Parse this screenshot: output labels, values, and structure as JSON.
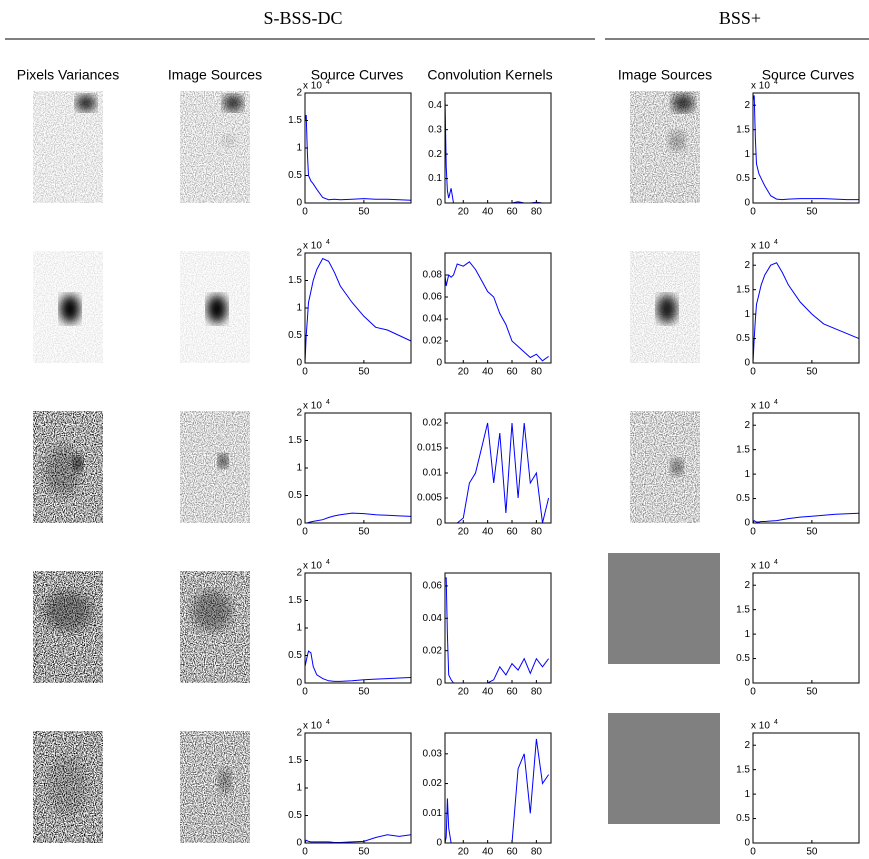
{
  "groups": [
    "S-BSS-DC",
    "BSS+"
  ],
  "columns": [
    "Pixels Variances",
    "Image Sources",
    "Source Curves",
    "Convolution Kernels",
    "Image Sources",
    "Source Curves"
  ],
  "chart_data": [
    {
      "type": "line",
      "color": "#0000ff",
      "scale_label": "x 10",
      "scale_exponent": "4",
      "x": [
        0,
        1,
        2,
        3,
        5,
        7,
        10,
        15,
        20,
        25,
        30,
        40,
        50,
        60,
        70,
        80,
        90
      ],
      "values": [
        15000,
        16000,
        9000,
        5000,
        4000,
        3500,
        2500,
        1000,
        600,
        700,
        600,
        700,
        800,
        700,
        700,
        600,
        500
      ],
      "xlim": [
        0,
        90
      ],
      "ylim": [
        0,
        20000
      ],
      "xticks": [
        0,
        50
      ],
      "yticks": [
        0,
        {
          "value": 5000,
          "label": "0.5"
        },
        {
          "value": 10000,
          "label": "1"
        },
        {
          "value": 15000,
          "label": "1.5"
        },
        {
          "value": 20000,
          "label": "2"
        }
      ]
    },
    {
      "type": "line",
      "color": "#0000ff",
      "scale_label": "x 10",
      "scale_exponent": "4",
      "x": [
        0,
        1,
        2,
        3,
        5,
        7,
        10,
        15,
        20,
        25,
        30,
        40,
        50,
        60,
        70,
        80,
        90
      ],
      "values": [
        0,
        5000,
        8000,
        11000,
        13000,
        15000,
        17000,
        19000,
        18500,
        16500,
        14000,
        11000,
        8500,
        6500,
        6000,
        5000,
        4000
      ],
      "xlim": [
        0,
        90
      ],
      "ylim": [
        0,
        20000
      ],
      "xticks": [
        0,
        50
      ],
      "yticks": [
        0,
        {
          "value": 5000,
          "label": "0.5"
        },
        {
          "value": 10000,
          "label": "1"
        },
        {
          "value": 15000,
          "label": "1.5"
        },
        {
          "value": 20000,
          "label": "2"
        }
      ]
    },
    {
      "type": "line",
      "color": "#0000ff",
      "scale_label": "x 10",
      "scale_exponent": "4",
      "x": [
        0,
        1,
        2,
        3,
        5,
        7,
        10,
        15,
        20,
        25,
        30,
        40,
        50,
        60,
        70,
        80,
        90
      ],
      "values": [
        0,
        0,
        0,
        100,
        200,
        300,
        400,
        600,
        1000,
        1300,
        1500,
        1800,
        1700,
        1500,
        1400,
        1300,
        1200
      ],
      "xlim": [
        0,
        90
      ],
      "ylim": [
        0,
        20000
      ],
      "xticks": [
        0,
        50
      ],
      "yticks": [
        0,
        {
          "value": 5000,
          "label": "0.5"
        },
        {
          "value": 10000,
          "label": "1"
        },
        {
          "value": 15000,
          "label": "1.5"
        },
        {
          "value": 20000,
          "label": "2"
        }
      ]
    },
    {
      "type": "line",
      "color": "#0000ff",
      "scale_label": "x 10",
      "scale_exponent": "4",
      "x": [
        0,
        1,
        2,
        3,
        5,
        7,
        10,
        15,
        20,
        25,
        30,
        40,
        50,
        60,
        70,
        80,
        90
      ],
      "values": [
        3000,
        4000,
        5000,
        5800,
        5500,
        3000,
        1500,
        800,
        400,
        300,
        300,
        400,
        600,
        700,
        800,
        900,
        1000
      ],
      "xlim": [
        0,
        90
      ],
      "ylim": [
        0,
        20000
      ],
      "xticks": [
        0,
        50
      ],
      "yticks": [
        0,
        {
          "value": 5000,
          "label": "0.5"
        },
        {
          "value": 10000,
          "label": "1"
        },
        {
          "value": 15000,
          "label": "1.5"
        },
        {
          "value": 20000,
          "label": "2"
        }
      ]
    },
    {
      "type": "line",
      "color": "#0000ff",
      "scale_label": "x 10",
      "scale_exponent": "4",
      "x": [
        0,
        1,
        2,
        3,
        5,
        7,
        10,
        15,
        20,
        25,
        30,
        40,
        50,
        60,
        70,
        80,
        90
      ],
      "values": [
        0,
        500,
        400,
        300,
        200,
        200,
        200,
        200,
        200,
        100,
        100,
        200,
        300,
        1000,
        1500,
        1200,
        1500
      ],
      "xlim": [
        0,
        90
      ],
      "ylim": [
        0,
        20000
      ],
      "xticks": [
        0,
        50
      ],
      "yticks": [
        0,
        {
          "value": 5000,
          "label": "0.5"
        },
        {
          "value": 10000,
          "label": "1"
        },
        {
          "value": 15000,
          "label": "1.5"
        },
        {
          "value": 20000,
          "label": "2"
        }
      ]
    },
    {
      "type": "line",
      "color": "#0000ff",
      "x": [
        5,
        6,
        7,
        8,
        10,
        12,
        15,
        20,
        25,
        30,
        35,
        40,
        45,
        50,
        55,
        60,
        65,
        70,
        75,
        80,
        85,
        90
      ],
      "values": [
        0.43,
        0.15,
        0.05,
        0.02,
        0.06,
        0,
        0,
        0,
        0,
        0,
        0,
        0,
        0,
        0,
        0,
        0,
        0.005,
        0,
        0,
        0.003,
        0,
        0
      ],
      "xlim": [
        5,
        92
      ],
      "ylim": [
        0,
        0.45
      ],
      "xticks": [
        20,
        40,
        60,
        80
      ],
      "yticks": [
        0,
        0.1,
        0.2,
        0.3,
        0.4
      ]
    },
    {
      "type": "line",
      "color": "#0000ff",
      "x": [
        5,
        6,
        7,
        8,
        10,
        12,
        15,
        20,
        25,
        30,
        35,
        40,
        45,
        50,
        55,
        60,
        65,
        70,
        75,
        80,
        85,
        90
      ],
      "values": [
        0.08,
        0.07,
        0.075,
        0.08,
        0.078,
        0.08,
        0.09,
        0.088,
        0.092,
        0.085,
        0.075,
        0.065,
        0.06,
        0.045,
        0.035,
        0.02,
        0.015,
        0.01,
        0.005,
        0.008,
        0.002,
        0.006
      ],
      "xlim": [
        5,
        92
      ],
      "ylim": [
        0,
        0.1
      ],
      "xticks": [
        20,
        40,
        60,
        80
      ],
      "yticks": [
        0,
        0.02,
        0.04,
        0.06,
        0.08
      ]
    },
    {
      "type": "line",
      "color": "#0000ff",
      "x": [
        5,
        6,
        7,
        8,
        10,
        12,
        15,
        20,
        25,
        30,
        35,
        40,
        45,
        50,
        55,
        60,
        65,
        70,
        75,
        80,
        85,
        90
      ],
      "values": [
        0,
        0,
        0,
        0,
        0,
        0,
        0,
        0.001,
        0.008,
        0.01,
        0.015,
        0.02,
        0.008,
        0.018,
        0.002,
        0.02,
        0.005,
        0.02,
        0.008,
        0.01,
        0,
        0.005
      ],
      "xlim": [
        5,
        92
      ],
      "ylim": [
        0,
        0.022
      ],
      "xticks": [
        20,
        40,
        60,
        80
      ],
      "yticks": [
        0,
        0.005,
        0.01,
        0.015,
        0.02
      ]
    },
    {
      "type": "line",
      "color": "#0000ff",
      "x": [
        5,
        6,
        7,
        8,
        10,
        12,
        15,
        20,
        25,
        30,
        35,
        40,
        45,
        50,
        55,
        60,
        65,
        70,
        75,
        80,
        85,
        90
      ],
      "values": [
        0.065,
        0.065,
        0.03,
        0.005,
        0.002,
        0,
        0,
        0,
        0,
        0,
        0,
        0,
        0.002,
        0.01,
        0.005,
        0.012,
        0.008,
        0.015,
        0.006,
        0.015,
        0.01,
        0.015
      ],
      "xlim": [
        5,
        92
      ],
      "ylim": [
        0,
        0.068
      ],
      "xticks": [
        20,
        40,
        60,
        80
      ],
      "yticks": [
        0,
        0.02,
        0.04,
        0.06
      ]
    },
    {
      "type": "line",
      "color": "#0000ff",
      "x": [
        5,
        6,
        7,
        8,
        10,
        12,
        15,
        20,
        25,
        30,
        35,
        40,
        45,
        50,
        55,
        60,
        65,
        70,
        75,
        80,
        85,
        90
      ],
      "values": [
        0,
        0.002,
        0.015,
        0.005,
        0,
        0,
        0,
        0,
        0,
        0,
        0,
        0,
        0,
        0,
        0,
        0,
        0.025,
        0.03,
        0.01,
        0.035,
        0.02,
        0.023
      ],
      "xlim": [
        5,
        92
      ],
      "ylim": [
        0,
        0.037
      ],
      "xticks": [
        20,
        40,
        60,
        80
      ],
      "yticks": [
        0,
        0.01,
        0.02,
        0.03
      ]
    },
    {
      "type": "line",
      "color": "#0000ff",
      "scale_label": "x 10",
      "scale_exponent": "4",
      "x": [
        0,
        1,
        2,
        3,
        5,
        7,
        10,
        15,
        20,
        25,
        30,
        40,
        50,
        60,
        70,
        80,
        90
      ],
      "values": [
        21000,
        22000,
        13000,
        8000,
        6000,
        5000,
        3500,
        1500,
        800,
        700,
        800,
        900,
        900,
        900,
        800,
        700,
        700
      ],
      "xlim": [
        0,
        90
      ],
      "ylim": [
        0,
        22500
      ],
      "xticks": [
        0,
        50
      ],
      "yticks": [
        0,
        {
          "value": 5000,
          "label": "0.5"
        },
        {
          "value": 10000,
          "label": "1"
        },
        {
          "value": 15000,
          "label": "1.5"
        },
        {
          "value": 20000,
          "label": "2"
        }
      ]
    },
    {
      "type": "line",
      "color": "#0000ff",
      "scale_label": "x 10",
      "scale_exponent": "4",
      "x": [
        0,
        1,
        2,
        3,
        5,
        7,
        10,
        15,
        20,
        25,
        30,
        40,
        50,
        60,
        70,
        80,
        90
      ],
      "values": [
        0,
        5000,
        9000,
        12000,
        14000,
        16000,
        18000,
        20000,
        20500,
        18500,
        16000,
        12500,
        10000,
        8000,
        7000,
        6000,
        5000
      ],
      "xlim": [
        0,
        90
      ],
      "ylim": [
        0,
        22500
      ],
      "xticks": [
        0,
        50
      ],
      "yticks": [
        0,
        {
          "value": 5000,
          "label": "0.5"
        },
        {
          "value": 10000,
          "label": "1"
        },
        {
          "value": 15000,
          "label": "1.5"
        },
        {
          "value": 20000,
          "label": "2"
        }
      ]
    },
    {
      "type": "line",
      "color": "#0000ff",
      "scale_label": "x 10",
      "scale_exponent": "4",
      "x": [
        0,
        1,
        2,
        3,
        5,
        7,
        10,
        15,
        20,
        25,
        30,
        40,
        50,
        60,
        70,
        80,
        90
      ],
      "values": [
        0,
        500,
        300,
        200,
        200,
        300,
        300,
        400,
        500,
        700,
        900,
        1200,
        1400,
        1600,
        1800,
        1900,
        2000
      ],
      "xlim": [
        0,
        90
      ],
      "ylim": [
        0,
        22500
      ],
      "xticks": [
        0,
        50
      ],
      "yticks": [
        0,
        {
          "value": 5000,
          "label": "0.5"
        },
        {
          "value": 10000,
          "label": "1"
        },
        {
          "value": 15000,
          "label": "1.5"
        },
        {
          "value": 20000,
          "label": "2"
        }
      ]
    },
    {
      "type": "line",
      "color": "#0000ff",
      "scale_label": "x 10",
      "scale_exponent": "4",
      "x": [
        0,
        1,
        2,
        3,
        5,
        7,
        10,
        15,
        20,
        25,
        30,
        40,
        50,
        60,
        70,
        80,
        90
      ],
      "values": [
        0,
        0,
        0,
        0,
        0,
        0,
        0,
        0,
        0,
        0,
        0,
        0,
        0,
        0,
        0,
        0,
        0
      ],
      "xlim": [
        0,
        90
      ],
      "ylim": [
        0,
        22500
      ],
      "xticks": [
        0,
        50
      ],
      "yticks": [
        0,
        {
          "value": 5000,
          "label": "0.5"
        },
        {
          "value": 10000,
          "label": "1"
        },
        {
          "value": 15000,
          "label": "1.5"
        },
        {
          "value": 20000,
          "label": "2"
        }
      ]
    },
    {
      "type": "line",
      "color": "#0000ff",
      "scale_label": "x 10",
      "scale_exponent": "4",
      "x": [
        0,
        1,
        2,
        3,
        5,
        7,
        10,
        15,
        20,
        25,
        30,
        40,
        50,
        60,
        70,
        80,
        90
      ],
      "values": [
        0,
        0,
        0,
        0,
        0,
        0,
        0,
        0,
        0,
        0,
        0,
        0,
        0,
        0,
        0,
        0,
        0
      ],
      "xlim": [
        0,
        90
      ],
      "ylim": [
        0,
        22500
      ],
      "xticks": [
        0,
        50
      ],
      "yticks": [
        0,
        {
          "value": 5000,
          "label": "0.5"
        },
        {
          "value": 10000,
          "label": "1"
        },
        {
          "value": 15000,
          "label": "1.5"
        },
        {
          "value": 20000,
          "label": "2"
        }
      ]
    }
  ]
}
